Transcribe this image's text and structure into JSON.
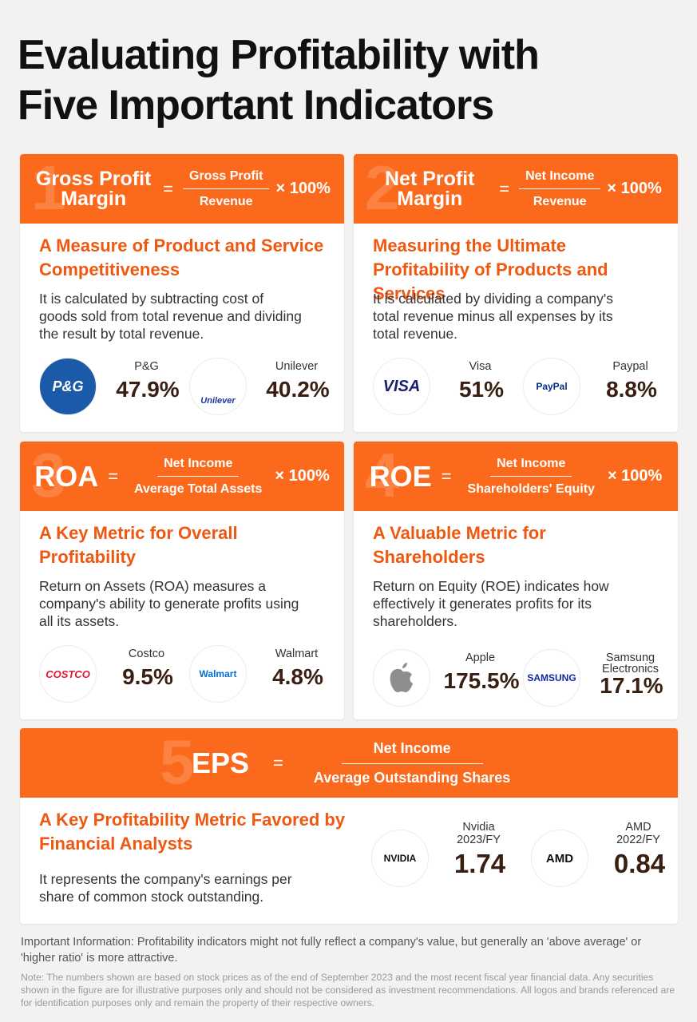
{
  "title_lines": [
    "Evaluating Profitability with",
    "Five Important Indicators"
  ],
  "cards": [
    {
      "number": "1",
      "name_lines": [
        "Gross Profit",
        "Margin"
      ],
      "equals": "=",
      "numerator": "Gross Profit",
      "denominator": "Revenue",
      "multiplier": "× 100%",
      "heading": "A Measure of Product and Service Competitiveness",
      "description": "It is calculated by subtracting cost of goods sold from total revenue and dividing the result by total revenue.",
      "companies": [
        {
          "logo": "P&G",
          "logo_color": "#1b5aa8",
          "name": "P&G",
          "value": "47.9%"
        },
        {
          "logo": "Unilever",
          "logo_color": "#1f36a0",
          "name": "Unilever",
          "value": "40.2%"
        }
      ]
    },
    {
      "number": "2",
      "name_lines": [
        "Net Profit",
        "Margin"
      ],
      "equals": "=",
      "numerator": "Net Income",
      "denominator": "Revenue",
      "multiplier": "× 100%",
      "heading": "Measuring the Ultimate Profitability of Products and Services",
      "description": "It is calculated by dividing a company's total revenue minus all expenses by its total revenue.",
      "companies": [
        {
          "logo": "VISA",
          "logo_color": "#1a1f71",
          "name": "Visa",
          "value": "51%"
        },
        {
          "logo": "PayPal",
          "logo_color": "#003087",
          "name": "Paypal",
          "value": "8.8%"
        }
      ]
    },
    {
      "number": "3",
      "name_lines": [
        "ROA"
      ],
      "equals": "=",
      "numerator": "Net Income",
      "denominator": "Average Total Assets",
      "multiplier": "× 100%",
      "heading": "A Key Metric for Overall Profitability",
      "description": "Return on Assets (ROA) measures a company's ability to generate profits using all its assets.",
      "companies": [
        {
          "logo": "COSTCO",
          "logo_color": "#e31837",
          "name": "Costco",
          "value": "9.5%"
        },
        {
          "logo": "Walmart",
          "logo_color": "#0071ce",
          "name": "Walmart",
          "value": "4.8%"
        }
      ]
    },
    {
      "number": "4",
      "name_lines": [
        "ROE"
      ],
      "equals": "=",
      "numerator": "Net Income",
      "denominator": "Shareholders' Equity",
      "multiplier": "× 100%",
      "heading": "A Valuable Metric for Shareholders",
      "description": "Return on Equity (ROE) indicates how effectively it generates profits for its shareholders.",
      "companies": [
        {
          "logo_color": "#8e8e8e",
          "name": "Apple",
          "value": "175.5%"
        },
        {
          "logo": "SAMSUNG",
          "logo_color": "#1428a0",
          "name": "Samsung Electronics",
          "value": "17.1%"
        }
      ]
    },
    {
      "number": "5",
      "name_lines": [
        "EPS"
      ],
      "equals": "=",
      "numerator": "Net Income",
      "denominator": "Average Outstanding Shares",
      "heading": "A Key Profitability Metric Favored by Financial Analysts",
      "description": "It represents the company's earnings per share of common stock outstanding.",
      "companies": [
        {
          "logo": "NVIDIA",
          "logo_color": "#111111",
          "name": "Nvidia",
          "period": "2023/FY",
          "value": "1.74"
        },
        {
          "logo": "AMD",
          "logo_color": "#111111",
          "name": "AMD",
          "period": "2022/FY",
          "value": "0.84"
        }
      ]
    }
  ],
  "important": "Important Information: Profitability indicators might not fully reflect a company's value, but generally an 'above average' or 'higher ratio' is more attractive.",
  "note": "Note: The numbers shown are based on stock prices as of the end of September 2023 and the most recent fiscal year financial data. Any securities shown in the figure are for illustrative purposes only and should not be considered as investment recommendations. All logos and brands referenced are for identification purposes only and remain the property of their respective owners."
}
